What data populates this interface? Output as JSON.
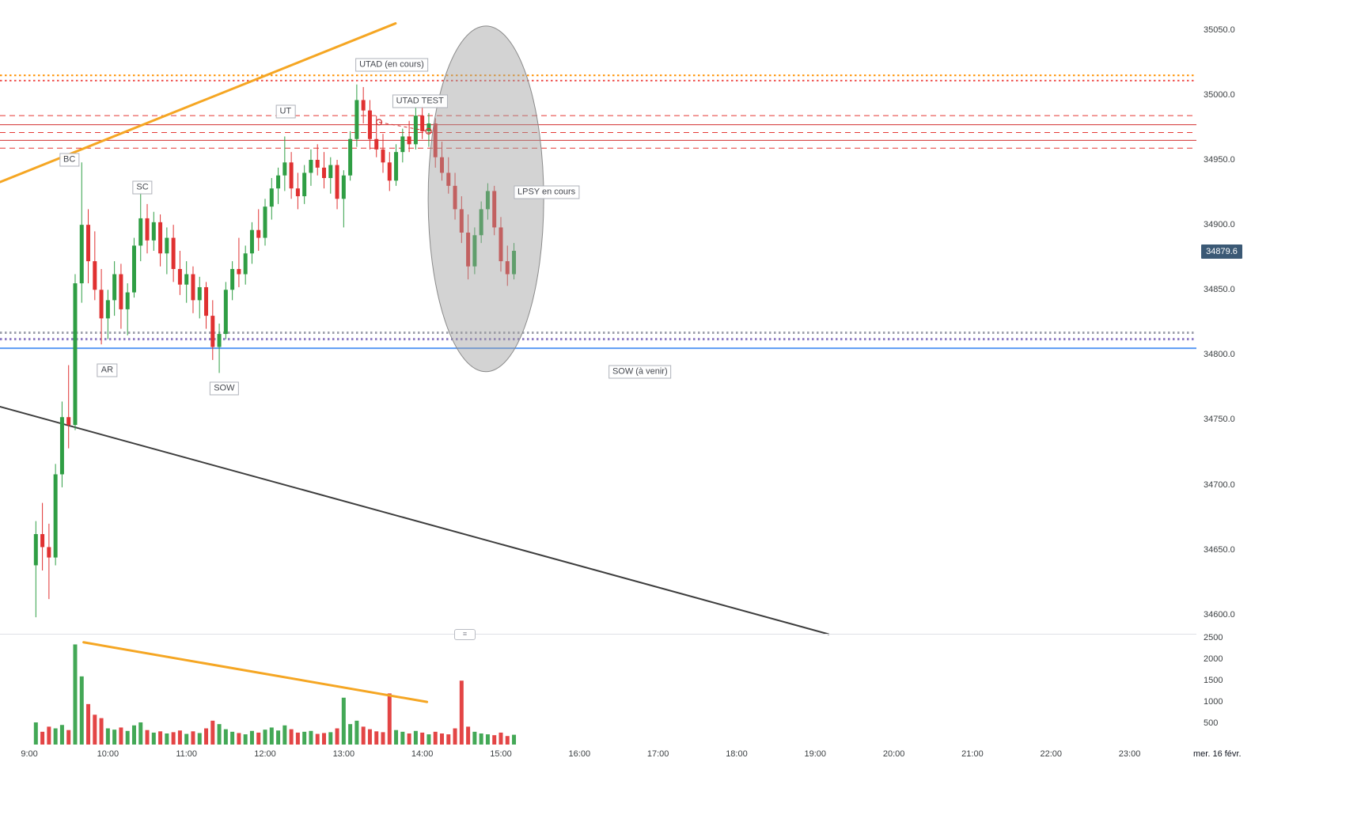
{
  "price_axis": {
    "ticks": [
      "35050.0",
      "35000.0",
      "34950.0",
      "34900.0",
      "34850.0",
      "34800.0",
      "34750.0",
      "34700.0",
      "34650.0",
      "34600.0"
    ],
    "last_price": "34879.6",
    "badge_bg": "#3b5975"
  },
  "volume_axis": {
    "ticks": [
      "2500",
      "2000",
      "1500",
      "1000",
      "500"
    ]
  },
  "time_axis": {
    "ticks": [
      "9:00",
      "10:00",
      "11:00",
      "12:00",
      "13:00",
      "14:00",
      "15:00",
      "16:00",
      "17:00",
      "18:00",
      "19:00",
      "20:00",
      "21:00",
      "22:00",
      "23:00"
    ],
    "date_label": "mer. 16 févr."
  },
  "chart_data": {
    "type": "candlestick",
    "title": "Wyckoff distribution schematic over 5-minute candles",
    "x_axis": "time of day",
    "y_axis": "price",
    "ylim": [
      34585,
      35073
    ],
    "interval_min": 5,
    "start_hour": 9.0833,
    "colors": {
      "up": "#2f9e44",
      "down": "#e03131"
    },
    "candles": [
      [
        34638,
        34672,
        34598,
        34662,
        520
      ],
      [
        34662,
        34686,
        34634,
        34652,
        300
      ],
      [
        34652,
        34670,
        34612,
        34644,
        420
      ],
      [
        34644,
        34716,
        34638,
        34708,
        380
      ],
      [
        34708,
        34764,
        34698,
        34752,
        460
      ],
      [
        34752,
        34792,
        34728,
        34746,
        340
      ],
      [
        34746,
        34862,
        34742,
        34855,
        2350
      ],
      [
        34855,
        34948,
        34840,
        34900,
        1600
      ],
      [
        34900,
        34912,
        34855,
        34872,
        950
      ],
      [
        34872,
        34895,
        34842,
        34850,
        700
      ],
      [
        34850,
        34866,
        34808,
        34828,
        620
      ],
      [
        34828,
        34850,
        34812,
        34842,
        380
      ],
      [
        34842,
        34872,
        34830,
        34862,
        350
      ],
      [
        34862,
        34870,
        34820,
        34835,
        400
      ],
      [
        34835,
        34855,
        34815,
        34848,
        320
      ],
      [
        34848,
        34890,
        34844,
        34884,
        450
      ],
      [
        34884,
        34925,
        34872,
        34905,
        520
      ],
      [
        34905,
        34916,
        34878,
        34888,
        340
      ],
      [
        34888,
        34910,
        34880,
        34902,
        280
      ],
      [
        34902,
        34908,
        34868,
        34878,
        310
      ],
      [
        34878,
        34898,
        34862,
        34890,
        260
      ],
      [
        34890,
        34900,
        34856,
        34866,
        290
      ],
      [
        34866,
        34880,
        34846,
        34854,
        330
      ],
      [
        34854,
        34872,
        34840,
        34862,
        250
      ],
      [
        34862,
        34868,
        34832,
        34842,
        310
      ],
      [
        34842,
        34860,
        34828,
        34852,
        270
      ],
      [
        34852,
        34856,
        34820,
        34830,
        380
      ],
      [
        34830,
        34842,
        34796,
        34806,
        560
      ],
      [
        34806,
        34824,
        34786,
        34816,
        480
      ],
      [
        34816,
        34856,
        34812,
        34850,
        360
      ],
      [
        34850,
        34872,
        34842,
        34866,
        300
      ],
      [
        34866,
        34890,
        34852,
        34862,
        270
      ],
      [
        34862,
        34884,
        34854,
        34878,
        240
      ],
      [
        34878,
        34902,
        34870,
        34896,
        320
      ],
      [
        34896,
        34912,
        34880,
        34890,
        280
      ],
      [
        34890,
        34920,
        34884,
        34914,
        350
      ],
      [
        34914,
        34936,
        34904,
        34928,
        400
      ],
      [
        34928,
        34944,
        34916,
        34938,
        330
      ],
      [
        34938,
        34968,
        34926,
        34948,
        450
      ],
      [
        34948,
        34956,
        34920,
        34928,
        360
      ],
      [
        34928,
        34940,
        34912,
        34922,
        280
      ],
      [
        34922,
        34946,
        34916,
        34940,
        300
      ],
      [
        34940,
        34958,
        34930,
        34950,
        320
      ],
      [
        34950,
        34962,
        34938,
        34944,
        250
      ],
      [
        34944,
        34956,
        34928,
        34936,
        270
      ],
      [
        34936,
        34952,
        34924,
        34946,
        290
      ],
      [
        34946,
        34950,
        34912,
        34920,
        380
      ],
      [
        34920,
        34942,
        34898,
        34938,
        1100
      ],
      [
        34938,
        34972,
        34934,
        34966,
        480
      ],
      [
        34966,
        35008,
        34960,
        34996,
        560
      ],
      [
        34996,
        35006,
        34978,
        34988,
        420
      ],
      [
        34988,
        34996,
        34958,
        34966,
        360
      ],
      [
        34966,
        34984,
        34952,
        34958,
        310
      ],
      [
        34958,
        34970,
        34940,
        34948,
        290
      ],
      [
        34948,
        34956,
        34926,
        34934,
        1200
      ],
      [
        34934,
        34962,
        34930,
        34956,
        340
      ],
      [
        34956,
        34974,
        34948,
        34968,
        300
      ],
      [
        34968,
        34980,
        34956,
        34962,
        260
      ],
      [
        34962,
        34990,
        34958,
        34984,
        320
      ],
      [
        34984,
        34992,
        34966,
        34972,
        280
      ],
      [
        34972,
        34986,
        34960,
        34978,
        240
      ],
      [
        34978,
        34982,
        34944,
        34952,
        300
      ],
      [
        34952,
        34964,
        34934,
        34940,
        260
      ],
      [
        34940,
        34952,
        34924,
        34930,
        240
      ],
      [
        34930,
        34940,
        34904,
        34912,
        380
      ],
      [
        34912,
        34922,
        34886,
        34894,
        1500
      ],
      [
        34894,
        34908,
        34858,
        34868,
        420
      ],
      [
        34868,
        34898,
        34862,
        34892,
        300
      ],
      [
        34892,
        34918,
        34886,
        34912,
        260
      ],
      [
        34912,
        34932,
        34904,
        34926,
        240
      ],
      [
        34926,
        34930,
        34892,
        34898,
        220
      ],
      [
        34898,
        34906,
        34864,
        34872,
        280
      ],
      [
        34872,
        34884,
        34853,
        34862,
        200
      ],
      [
        34862,
        34886,
        34858,
        34880,
        230
      ]
    ],
    "h_lines": [
      {
        "price": 35015,
        "color": "#ff9100",
        "style": "dotted",
        "width": 2
      },
      {
        "price": 35011,
        "color": "#ef5350",
        "style": "dotted",
        "width": 2
      },
      {
        "price": 34984,
        "color": "#e53935",
        "style": "dashed",
        "width": 1
      },
      {
        "price": 34977,
        "color": "#d32f2f",
        "style": "solid",
        "width": 1
      },
      {
        "price": 34971,
        "color": "#e53935",
        "style": "dashed",
        "width": 1
      },
      {
        "price": 34965,
        "color": "#d32f2f",
        "style": "solid",
        "width": 1
      },
      {
        "price": 34959,
        "color": "#e53935",
        "style": "dashed",
        "width": 1
      },
      {
        "price": 34817,
        "color": "#a0a3ae",
        "style": "dotted",
        "width": 3
      },
      {
        "price": 34812,
        "color": "#8e7cc3",
        "style": "dotted",
        "width": 3
      },
      {
        "price": 34805,
        "color": "#5b9bf5",
        "style": "solid",
        "width": 2
      }
    ],
    "trend_lines": [
      {
        "t1": 8.63,
        "p1": 34933,
        "t2": 13.66,
        "p2": 35055,
        "color": "#f5a623",
        "width": 3
      },
      {
        "t1": 8.63,
        "p1": 34760,
        "t2": 19.17,
        "p2": 34585,
        "color": "#3d3d3d",
        "width": 2
      }
    ],
    "volume_trend_line": {
      "t1": 9.69,
      "v1": 2400,
      "t2": 14.06,
      "v2": 1000,
      "color": "#f5a623",
      "width": 3
    },
    "ellipse": {
      "t": 14.81,
      "p": 34920,
      "rx_hours": 0.735,
      "ry_points": 133,
      "fill": "rgba(158,158,158,0.45)",
      "stroke": "#8a8a8a"
    },
    "markers": [
      {
        "t": 13.45,
        "p": 34979
      },
      {
        "t": 14.08,
        "p": 34972
      }
    ],
    "annotations": [
      {
        "text": "BC",
        "t": 9.51,
        "p": 34950
      },
      {
        "text": "SC",
        "t": 10.44,
        "p": 34929
      },
      {
        "text": "AR",
        "t": 9.99,
        "p": 34788
      },
      {
        "text": "SOW",
        "t": 11.48,
        "p": 34774
      },
      {
        "text": "UT",
        "t": 12.26,
        "p": 34987
      },
      {
        "text": "UTAD (en cours)",
        "t": 13.61,
        "p": 35023
      },
      {
        "text": "UTAD TEST",
        "t": 13.97,
        "p": 34995
      },
      {
        "text": "LPSY en cours",
        "t": 15.58,
        "p": 34925
      },
      {
        "text": "SOW (à venir)",
        "t": 16.77,
        "p": 34787
      }
    ],
    "pane_handle_glyph": "≡"
  }
}
